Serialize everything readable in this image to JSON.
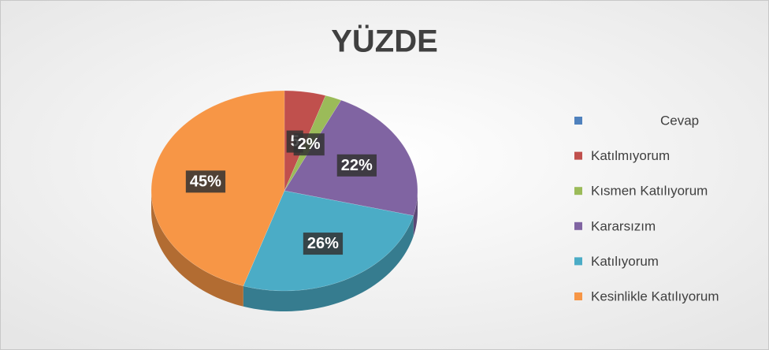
{
  "chart_data": {
    "type": "pie",
    "title": "YÜZDE",
    "categories": [
      "Cevap",
      "Katılmıyorum",
      "Kısmen Katılıyorum",
      "Kararsızım",
      "Katılıyorum",
      "Kesinlikle Katılıyorum"
    ],
    "values": [
      null,
      5,
      2,
      22,
      26,
      45
    ],
    "value_labels": [
      null,
      "5",
      "2%",
      "22%",
      "26%",
      "45%"
    ],
    "colors": [
      "#4f81bd",
      "#c0504d",
      "#9bbb59",
      "#8064a2",
      "#4bacc6",
      "#f79646"
    ],
    "legend": "right"
  }
}
